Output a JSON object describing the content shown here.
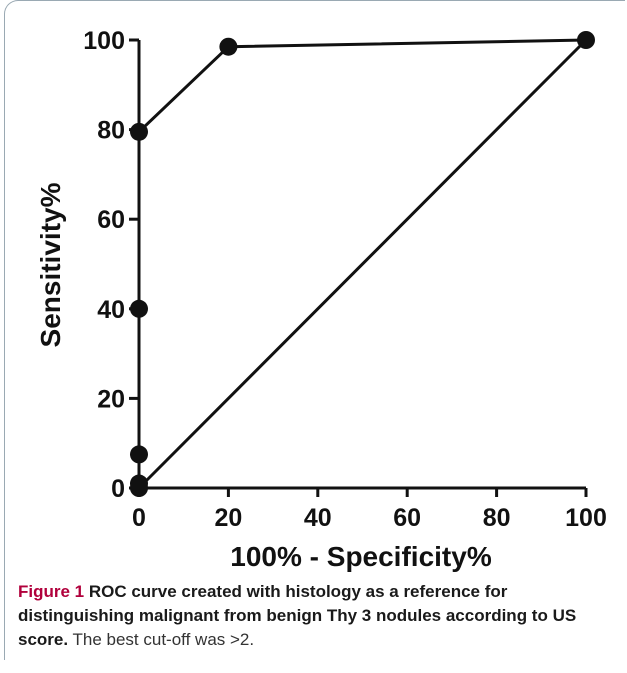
{
  "chart_data": {
    "type": "line",
    "xlabel": "100% - Specificity%",
    "ylabel": "Sensitivity%",
    "xlim": [
      0,
      100
    ],
    "ylim": [
      0,
      100
    ],
    "xticks": [
      0,
      20,
      40,
      60,
      80,
      100
    ],
    "yticks": [
      0,
      20,
      40,
      60,
      80,
      100
    ],
    "grid": false,
    "series": [
      {
        "points": [
          {
            "x": 0,
            "y": 0
          },
          {
            "x": 0,
            "y": 1
          },
          {
            "x": 0,
            "y": 7.5
          },
          {
            "x": 0,
            "y": 40
          },
          {
            "x": 0,
            "y": 79.5
          },
          {
            "x": 20,
            "y": 98.5
          },
          {
            "x": 100,
            "y": 100
          }
        ]
      }
    ],
    "reference_line": {
      "x": [
        0,
        100
      ],
      "y": [
        0,
        100
      ]
    }
  },
  "caption": {
    "label": "Figure 1",
    "title": " ROC curve created with histology as a reference for distinguishing malignant from benign Thy 3 nodules according to US score.",
    "text": " The best cut-off was >2."
  }
}
